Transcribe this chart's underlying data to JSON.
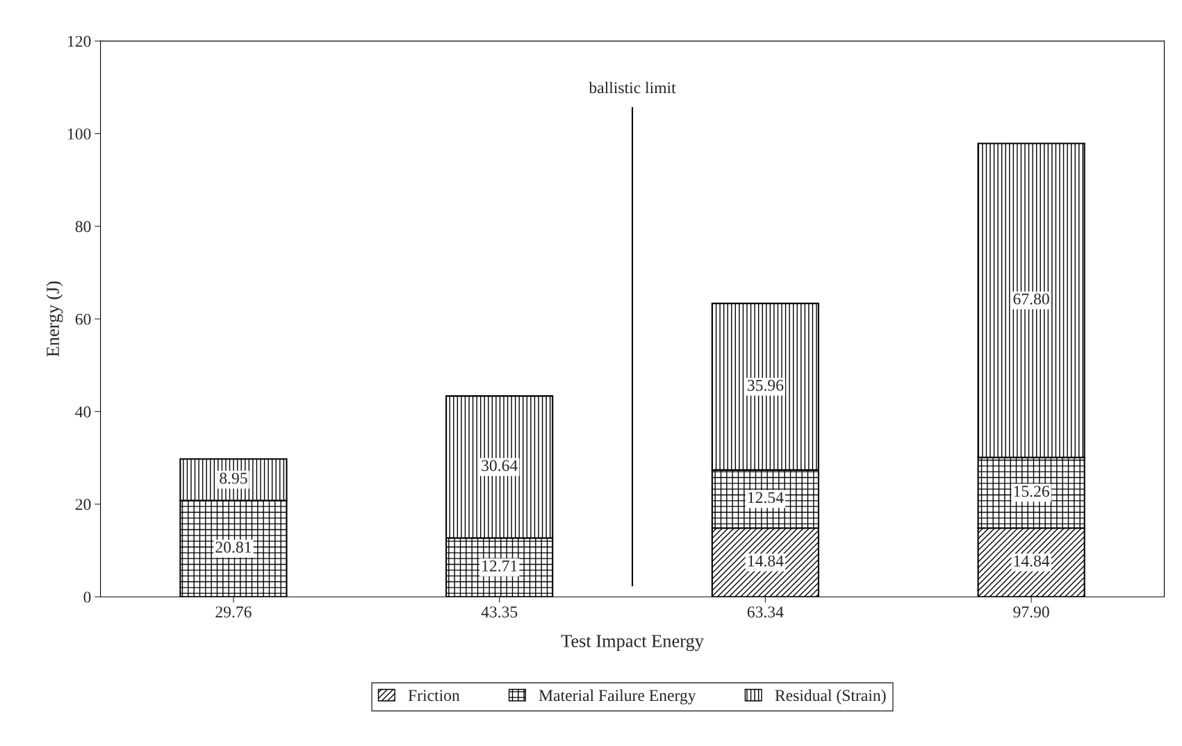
{
  "chart_data": {
    "type": "bar",
    "stacked": true,
    "xlabel": "Test Impact Energy",
    "ylabel": "Energy (J)",
    "categories": [
      "29.76",
      "43.35",
      "63.34",
      "97.90"
    ],
    "series": [
      {
        "name": "Friction",
        "color": "#000000",
        "values": [
          0,
          0,
          14.84,
          14.84
        ],
        "value_labels": [
          null,
          null,
          "14.84",
          "14.84"
        ]
      },
      {
        "name": "Material Failure Energy",
        "color": "#000000",
        "values": [
          20.81,
          12.71,
          12.54,
          15.26
        ],
        "value_labels": [
          "20.81",
          "12.71",
          "12.54",
          "15.26"
        ]
      },
      {
        "name": "Residual (Strain)",
        "color": "#000000",
        "values": [
          8.95,
          30.64,
          35.96,
          67.8
        ],
        "value_labels": [
          "8.95",
          "30.64",
          "35.96",
          "67.80"
        ]
      }
    ],
    "ylim": [
      0,
      120
    ],
    "yticks": [
      0,
      20,
      40,
      60,
      80,
      100,
      120
    ],
    "annotations": [
      "ballistic limit"
    ],
    "grid": false,
    "legend": "bottom"
  }
}
